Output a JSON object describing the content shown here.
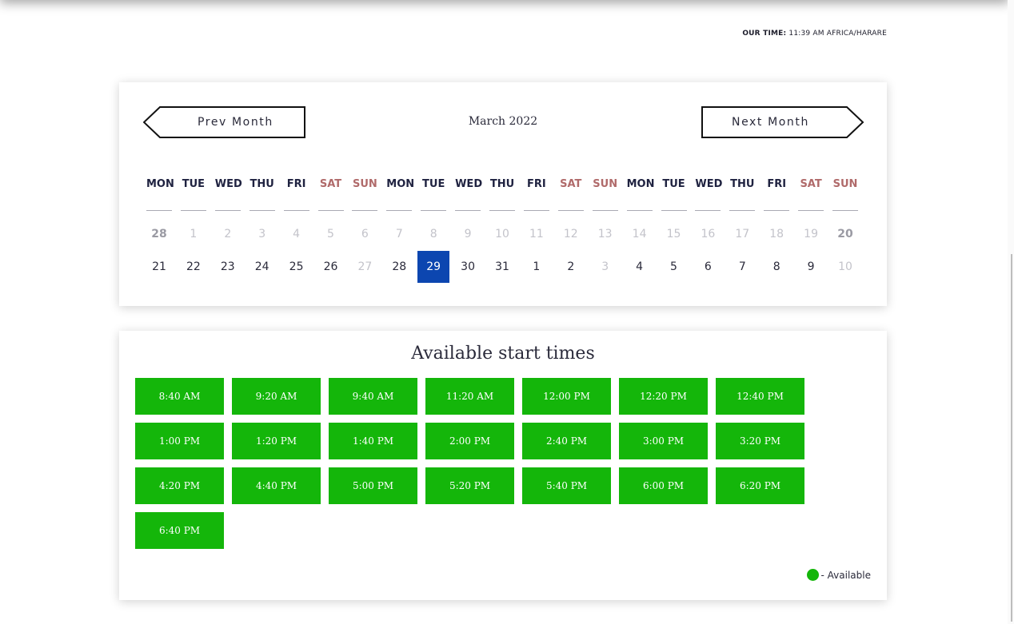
{
  "header": {
    "our_time_label": "OUR TIME:",
    "our_time_value": "11:39 AM AFRICA/HARARE"
  },
  "calendar": {
    "prev_label": "Prev Month",
    "next_label": "Next Month",
    "month_title": "March 2022",
    "weekdays": [
      "MON",
      "TUE",
      "WED",
      "THU",
      "FRI",
      "SAT",
      "SUN",
      "MON",
      "TUE",
      "WED",
      "THU",
      "FRI",
      "SAT",
      "SUN",
      "MON",
      "TUE",
      "WED",
      "THU",
      "FRI",
      "SAT",
      "SUN"
    ],
    "weekend_color": "#b06a6a",
    "week1": [
      "28",
      "1",
      "2",
      "3",
      "4",
      "5",
      "6",
      "7",
      "8",
      "9",
      "10",
      "11",
      "12",
      "13",
      "14",
      "15",
      "16",
      "17",
      "18",
      "19",
      "20"
    ],
    "week2": [
      "21",
      "22",
      "23",
      "24",
      "25",
      "26",
      "27",
      "28",
      "29",
      "30",
      "31",
      "1",
      "2",
      "3",
      "4",
      "5",
      "6",
      "7",
      "8",
      "9",
      "10"
    ],
    "selected_day": "29",
    "selected_color": "#0c46b0"
  },
  "times": {
    "title": "Available start times",
    "slots": [
      "8:40 AM",
      "9:20 AM",
      "9:40 AM",
      "11:20 AM",
      "12:00 PM",
      "12:20 PM",
      "12:40 PM",
      "1:00 PM",
      "1:20 PM",
      "1:40 PM",
      "2:00 PM",
      "2:40 PM",
      "3:00 PM",
      "3:20 PM",
      "4:20 PM",
      "4:40 PM",
      "5:00 PM",
      "5:20 PM",
      "5:40 PM",
      "6:00 PM",
      "6:20 PM",
      "6:40 PM"
    ],
    "available_color": "#14b60a",
    "legend_label": "- Available"
  }
}
